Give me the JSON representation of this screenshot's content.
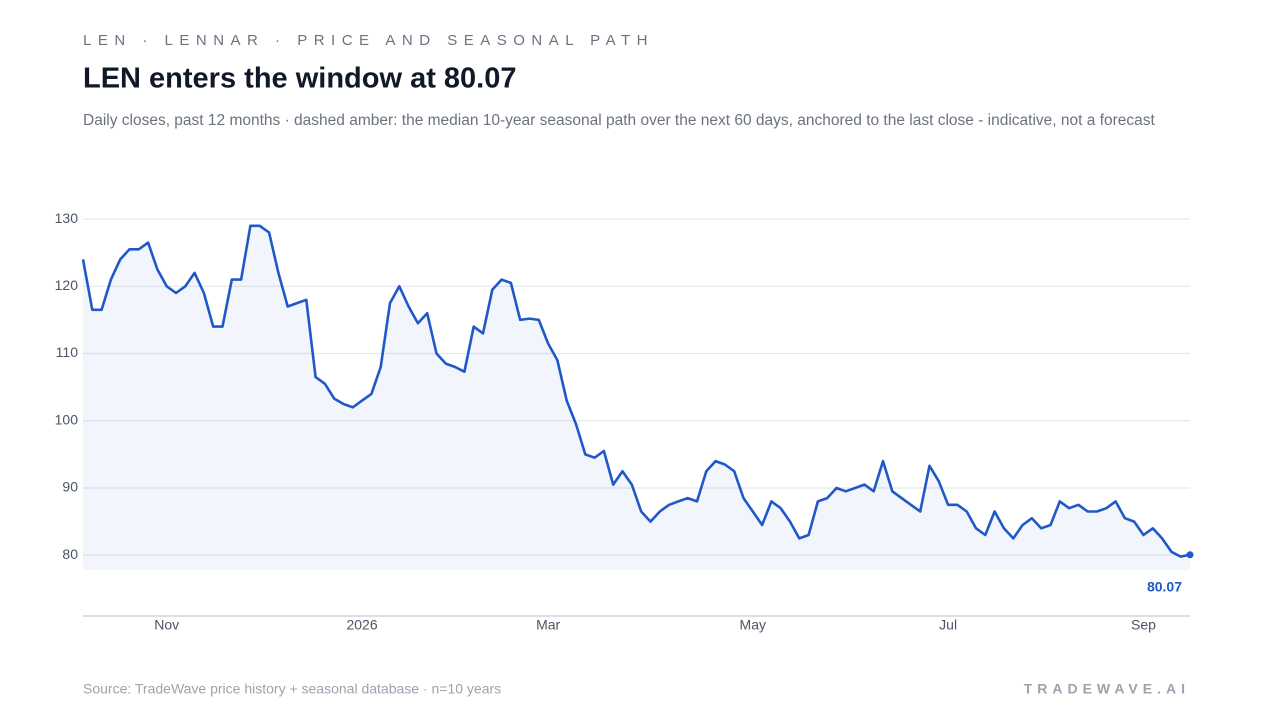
{
  "header": {
    "kicker": "LEN · LENNAR · PRICE AND SEASONAL PATH"
  },
  "chart_data": {
    "type": "line",
    "title": "LEN enters the window at 80.07",
    "subtitle": "Daily closes, past 12 months · dashed amber: the median 10-year seasonal path over the next 60 days, anchored to the last close - indicative, not a forecast",
    "categories": [
      null,
      null,
      null,
      null,
      null,
      null,
      null,
      null,
      null,
      "Nov",
      null,
      null,
      null,
      null,
      null,
      null,
      null,
      null,
      null,
      null,
      null,
      null,
      null,
      null,
      null,
      null,
      null,
      null,
      null,
      null,
      "2026",
      null,
      null,
      null,
      null,
      null,
      null,
      null,
      null,
      null,
      null,
      null,
      null,
      null,
      null,
      null,
      null,
      null,
      null,
      null,
      "Mar",
      null,
      null,
      null,
      null,
      null,
      null,
      null,
      null,
      null,
      null,
      null,
      null,
      null,
      null,
      null,
      null,
      null,
      null,
      null,
      null,
      null,
      "May",
      null,
      null,
      null,
      null,
      null,
      null,
      null,
      null,
      null,
      null,
      null,
      null,
      null,
      null,
      null,
      null,
      null,
      null,
      null,
      null,
      "Jul",
      null,
      null,
      null,
      null,
      null,
      null,
      null,
      null,
      null,
      null,
      null,
      null,
      null,
      null,
      null,
      null,
      null,
      null,
      null,
      null,
      "Sep",
      null,
      null,
      null,
      null,
      null
    ],
    "values": [
      124,
      116.5,
      116.5,
      121,
      124,
      125.5,
      125.5,
      126.5,
      122.5,
      120,
      119,
      120,
      122,
      119,
      114,
      114,
      121,
      121,
      129,
      129,
      128,
      122,
      117,
      117.5,
      118,
      106.5,
      105.5,
      103.3,
      102.5,
      102,
      103,
      104,
      108,
      117.5,
      120,
      117,
      114.5,
      116,
      110,
      108.5,
      108,
      107.3,
      114,
      113,
      119.5,
      121,
      120.5,
      115,
      115.2,
      115,
      111.5,
      109,
      103,
      99.5,
      95,
      94.5,
      95.5,
      90.5,
      92.5,
      90.5,
      86.5,
      85,
      86.5,
      87.5,
      88,
      88.5,
      88,
      92.5,
      94,
      93.5,
      92.5,
      88.5,
      86.5,
      84.5,
      88,
      87,
      85,
      82.5,
      83,
      88,
      88.5,
      90,
      89.5,
      90,
      90.5,
      89.5,
      94,
      89.5,
      88.5,
      87.5,
      86.5,
      93.3,
      91,
      87.5,
      87.5,
      86.5,
      84,
      83,
      86.5,
      84,
      82.5,
      84.5,
      85.5,
      84,
      84.5,
      88,
      87,
      87.5,
      86.5,
      86.5,
      87,
      88,
      85.5,
      85,
      83,
      84,
      82.5,
      80.5,
      79.8,
      80.07
    ],
    "color": "#2158c8",
    "ylim": [
      77.8,
      131.5
    ],
    "yticks": [
      80,
      90,
      100,
      110,
      120,
      130
    ],
    "grid": true
  },
  "footer": {
    "source": "Source: TradeWave price history + seasonal database · n=10 years",
    "brand": "TRADEWAVE.AI"
  }
}
